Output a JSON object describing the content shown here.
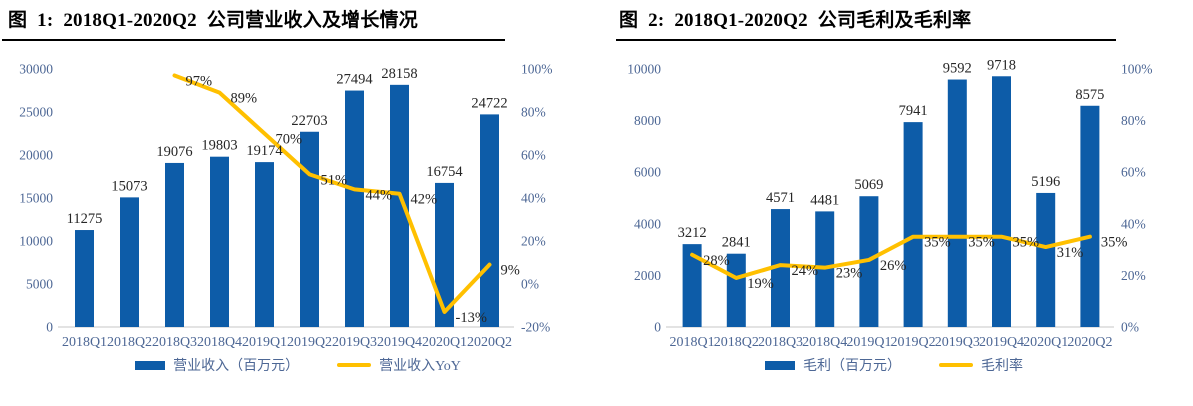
{
  "colors": {
    "bar": "#0D5CA8",
    "line": "#FFC000",
    "axis_text": "#4D6795",
    "value_text": "#262626",
    "baseline": "#D2D2D2",
    "title": "#000000",
    "underline": "#000000",
    "background": "#FFFFFF"
  },
  "charts": [
    {
      "title": "图 1: 2018Q1-2020Q2 公司营业收入及增长情况",
      "legend": [
        {
          "swatch": "bar",
          "label": "营业收入（百万元）"
        },
        {
          "swatch": "line",
          "label": "营业收入YoY"
        }
      ],
      "chart_data": {
        "type": "bar",
        "categories": [
          "2018Q1",
          "2018Q2",
          "2018Q3",
          "2018Q4",
          "2019Q1",
          "2019Q2",
          "2019Q3",
          "2019Q4",
          "2020Q1",
          "2020Q2"
        ],
        "series": [
          {
            "name": "营业收入（百万元）",
            "type": "bar",
            "axis": "left",
            "values": [
              11275,
              15073,
              19076,
              19803,
              19174,
              22703,
              27494,
              28158,
              16754,
              24722
            ]
          },
          {
            "name": "营业收入YoY",
            "type": "line",
            "axis": "right",
            "values": [
              null,
              null,
              97,
              89,
              70,
              51,
              44,
              42,
              -13,
              9
            ],
            "labels": [
              null,
              null,
              "97%",
              "89%",
              "70%",
              "51%",
              "44%",
              "42%",
              "-13%",
              "9%"
            ]
          }
        ],
        "left_axis": {
          "min": 0,
          "max": 30000,
          "ticks": [
            0,
            5000,
            10000,
            15000,
            20000,
            25000,
            30000
          ],
          "tick_labels": [
            "0",
            "5000",
            "10000",
            "15000",
            "20000",
            "25000",
            "30000"
          ]
        },
        "right_axis": {
          "min": -20,
          "max": 100,
          "ticks": [
            -20,
            0,
            20,
            40,
            60,
            80,
            100
          ],
          "tick_labels": [
            "-20%",
            "0%",
            "20%",
            "40%",
            "60%",
            "80%",
            "100%"
          ]
        },
        "grid": false,
        "legend_position": "bottom"
      }
    },
    {
      "title": "图 2: 2018Q1-2020Q2 公司毛利及毛利率",
      "legend": [
        {
          "swatch": "bar",
          "label": "毛利（百万元）"
        },
        {
          "swatch": "line",
          "label": "毛利率"
        }
      ],
      "chart_data": {
        "type": "bar",
        "categories": [
          "2018Q1",
          "2018Q2",
          "2018Q3",
          "2018Q4",
          "2019Q1",
          "2019Q2",
          "2019Q3",
          "2019Q4",
          "2020Q1",
          "2020Q2"
        ],
        "series": [
          {
            "name": "毛利（百万元）",
            "type": "bar",
            "axis": "left",
            "values": [
              3212,
              2841,
              4571,
              4481,
              5069,
              7941,
              9592,
              9718,
              5196,
              8575
            ]
          },
          {
            "name": "毛利率",
            "type": "line",
            "axis": "right",
            "values": [
              28,
              19,
              24,
              23,
              26,
              35,
              35,
              35,
              31,
              35
            ],
            "labels": [
              "28%",
              "19%",
              "24%",
              "23%",
              "26%",
              "35%",
              "35%",
              "35%",
              "31%",
              "35%"
            ]
          }
        ],
        "left_axis": {
          "min": 0,
          "max": 10000,
          "ticks": [
            0,
            2000,
            4000,
            6000,
            8000,
            10000
          ],
          "tick_labels": [
            "0",
            "2000",
            "4000",
            "6000",
            "8000",
            "10000"
          ]
        },
        "right_axis": {
          "min": 0,
          "max": 100,
          "ticks": [
            0,
            20,
            40,
            60,
            80,
            100
          ],
          "tick_labels": [
            "0%",
            "20%",
            "40%",
            "60%",
            "80%",
            "100%"
          ]
        },
        "grid": false,
        "legend_position": "bottom"
      }
    }
  ]
}
